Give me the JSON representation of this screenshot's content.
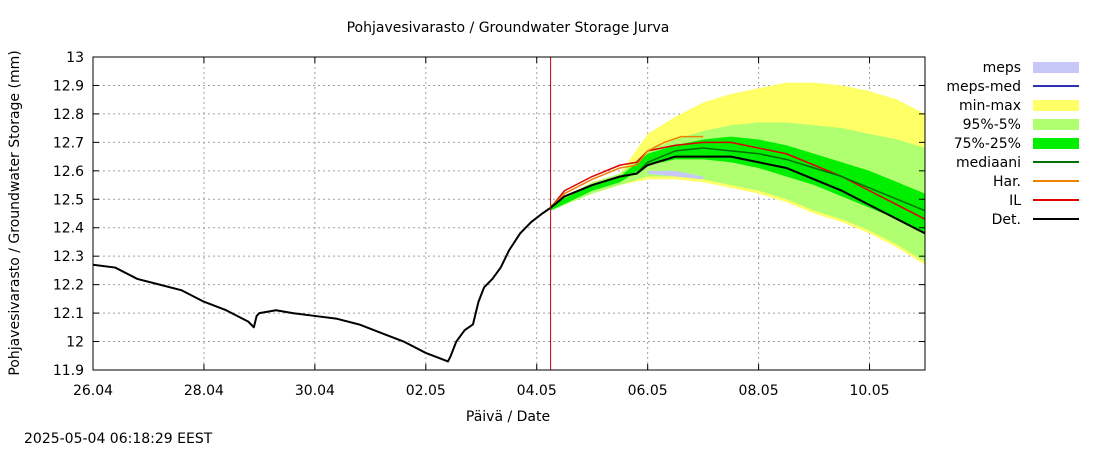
{
  "chart_data": {
    "type": "line",
    "title": "Pohjavesivarasto / Groundwater Storage   Jurva",
    "xlabel": "Päivä / Date",
    "ylabel": "Pohjavesivarasto / Groundwater Storage (mm)",
    "timestamp": "2025-05-04 06:18:29 EEST",
    "xlim": [
      0,
      15
    ],
    "ylim": [
      11.9,
      13.0
    ],
    "grid": true,
    "legend_position": "right",
    "x_ticks": [
      {
        "x": 0,
        "label": "26.04"
      },
      {
        "x": 2,
        "label": "28.04"
      },
      {
        "x": 4,
        "label": "30.04"
      },
      {
        "x": 6,
        "label": "02.05"
      },
      {
        "x": 8,
        "label": "04.05"
      },
      {
        "x": 10,
        "label": "06.05"
      },
      {
        "x": 12,
        "label": "08.05"
      },
      {
        "x": 14,
        "label": "10.05"
      }
    ],
    "y_ticks": [
      {
        "y": 11.9,
        "label": "11.9"
      },
      {
        "y": 12.0,
        "label": "12"
      },
      {
        "y": 12.1,
        "label": "12.1"
      },
      {
        "y": 12.2,
        "label": "12.2"
      },
      {
        "y": 12.3,
        "label": "12.3"
      },
      {
        "y": 12.4,
        "label": "12.4"
      },
      {
        "y": 12.5,
        "label": "12.5"
      },
      {
        "y": 12.6,
        "label": "12.6"
      },
      {
        "y": 12.7,
        "label": "12.7"
      },
      {
        "y": 12.8,
        "label": "12.8"
      },
      {
        "y": 12.9,
        "label": "12.9"
      },
      {
        "y": 13.0,
        "label": "13"
      }
    ],
    "now_line_x": 8.25,
    "now_line_color": "#c00000",
    "legend": [
      {
        "label": "meps",
        "kind": "band",
        "color": "#c8c8f8"
      },
      {
        "label": "meps-med",
        "kind": "line",
        "color": "#3030b0"
      },
      {
        "label": "min-max",
        "kind": "band",
        "color": "#ffff66"
      },
      {
        "label": "95%-5%",
        "kind": "band",
        "color": "#b0ff70"
      },
      {
        "label": "75%-25%",
        "kind": "band",
        "color": "#00ee00"
      },
      {
        "label": "mediaani",
        "kind": "line",
        "color": "#007000"
      },
      {
        "label": "Har.",
        "kind": "line",
        "color": "#f08000"
      },
      {
        "label": "IL",
        "kind": "line",
        "color": "#e00000"
      },
      {
        "label": "Det.",
        "kind": "line",
        "color": "#000000"
      }
    ],
    "bands": [
      {
        "name": "min-max",
        "color": "#ffff66",
        "x": [
          8.25,
          9.0,
          9.5,
          10.0,
          10.5,
          11.0,
          11.5,
          12.0,
          12.5,
          13.0,
          13.5,
          14.0,
          14.5,
          15.0
        ],
        "upper": [
          12.48,
          12.56,
          12.59,
          12.73,
          12.79,
          12.84,
          12.87,
          12.89,
          12.91,
          12.91,
          12.9,
          12.88,
          12.85,
          12.8
        ],
        "lower": [
          12.46,
          12.52,
          12.55,
          12.57,
          12.57,
          12.56,
          12.54,
          12.52,
          12.49,
          12.45,
          12.42,
          12.38,
          12.33,
          12.27
        ]
      },
      {
        "name": "95%-5%",
        "color": "#b0ff70",
        "x": [
          8.25,
          9.0,
          9.5,
          10.0,
          10.5,
          11.0,
          11.5,
          12.0,
          12.5,
          13.0,
          13.5,
          14.0,
          14.5,
          15.0
        ],
        "upper": [
          12.48,
          12.56,
          12.59,
          12.67,
          12.71,
          12.74,
          12.76,
          12.77,
          12.77,
          12.76,
          12.75,
          12.73,
          12.71,
          12.68
        ],
        "lower": [
          12.46,
          12.52,
          12.55,
          12.58,
          12.58,
          12.57,
          12.55,
          12.53,
          12.5,
          12.46,
          12.43,
          12.39,
          12.34,
          12.28
        ]
      },
      {
        "name": "75%-25%",
        "color": "#00ee00",
        "x": [
          8.25,
          9.0,
          9.5,
          10.0,
          10.5,
          11.0,
          11.5,
          12.0,
          12.5,
          13.0,
          13.5,
          14.0,
          14.5,
          15.0
        ],
        "upper": [
          12.48,
          12.55,
          12.58,
          12.66,
          12.69,
          12.71,
          12.72,
          12.71,
          12.69,
          12.66,
          12.63,
          12.6,
          12.56,
          12.52
        ],
        "lower": [
          12.46,
          12.53,
          12.56,
          12.62,
          12.64,
          12.64,
          12.63,
          12.61,
          12.58,
          12.55,
          12.51,
          12.47,
          12.43,
          12.38
        ]
      },
      {
        "name": "meps",
        "color": "#c8c8f8",
        "x": [
          10.0,
          10.5,
          11.0
        ],
        "upper": [
          12.6,
          12.6,
          12.58
        ],
        "lower": [
          12.59,
          12.58,
          12.57
        ]
      }
    ],
    "series": [
      {
        "name": "Det.",
        "color": "#000000",
        "width": 2,
        "x": [
          0.0,
          0.4,
          0.8,
          1.2,
          1.6,
          2.0,
          2.4,
          2.8,
          2.9,
          2.95,
          3.0,
          3.3,
          3.6,
          4.0,
          4.4,
          4.8,
          5.2,
          5.6,
          6.0,
          6.4,
          6.45,
          6.55,
          6.7,
          6.85,
          6.95,
          7.05,
          7.2,
          7.35,
          7.5,
          7.7,
          7.9,
          8.1,
          8.25,
          8.5,
          9.0,
          9.5,
          9.8,
          10.0,
          10.5,
          11.0,
          11.5,
          12.0,
          12.5,
          13.0,
          13.5,
          14.0,
          14.5,
          15.0
        ],
        "y": [
          12.27,
          12.26,
          12.22,
          12.2,
          12.18,
          12.14,
          12.11,
          12.07,
          12.05,
          12.09,
          12.1,
          12.11,
          12.1,
          12.09,
          12.08,
          12.06,
          12.03,
          12.0,
          11.96,
          11.93,
          11.95,
          12.0,
          12.04,
          12.06,
          12.14,
          12.19,
          12.22,
          12.26,
          12.32,
          12.38,
          12.42,
          12.45,
          12.47,
          12.51,
          12.55,
          12.58,
          12.59,
          12.62,
          12.65,
          12.65,
          12.65,
          12.63,
          12.61,
          12.57,
          12.53,
          12.48,
          12.43,
          12.38
        ]
      },
      {
        "name": "mediaani",
        "color": "#007000",
        "width": 1.5,
        "x": [
          8.25,
          8.5,
          9.0,
          9.5,
          9.8,
          10.0,
          10.5,
          11.0,
          11.5,
          12.0,
          12.5,
          13.0,
          13.5,
          14.0,
          14.5,
          15.0
        ],
        "y": [
          12.47,
          12.51,
          12.55,
          12.58,
          12.59,
          12.63,
          12.67,
          12.68,
          12.67,
          12.66,
          12.64,
          12.61,
          12.58,
          12.54,
          12.5,
          12.46
        ]
      },
      {
        "name": "Har.",
        "color": "#f08000",
        "width": 1.5,
        "x": [
          8.25,
          8.5,
          9.0,
          9.5,
          9.8,
          10.0,
          10.3,
          10.6,
          11.0
        ],
        "y": [
          12.47,
          12.52,
          12.57,
          12.61,
          12.62,
          12.67,
          12.7,
          12.72,
          12.72
        ]
      },
      {
        "name": "IL",
        "color": "#e00000",
        "width": 1.5,
        "x": [
          8.25,
          8.5,
          9.0,
          9.5,
          9.8,
          10.0,
          10.5,
          11.0,
          11.5,
          12.0,
          12.5,
          13.0,
          13.5,
          14.0,
          14.5,
          15.0
        ],
        "y": [
          12.47,
          12.53,
          12.58,
          12.62,
          12.63,
          12.67,
          12.69,
          12.7,
          12.7,
          12.68,
          12.66,
          12.62,
          12.58,
          12.53,
          12.48,
          12.43
        ]
      }
    ]
  }
}
